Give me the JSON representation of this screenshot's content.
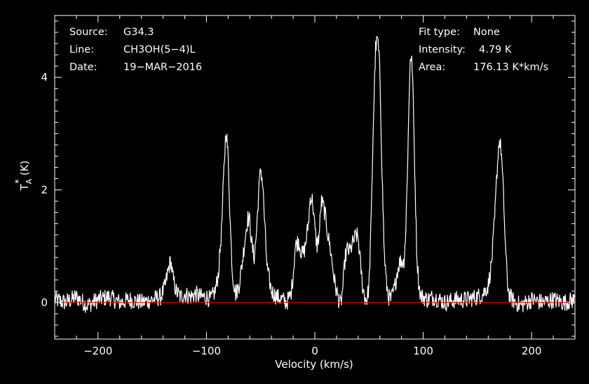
{
  "chart_data": {
    "type": "line",
    "xlabel": "Velocity (km/s)",
    "ylabel_main": "T",
    "ylabel_sub": "A",
    "ylabel_sup": "*",
    "ylabel_unit": "(K)",
    "xlim": [
      -240,
      240
    ],
    "ylim": [
      -0.65,
      5.1
    ],
    "xticks": [
      -200,
      -100,
      0,
      100,
      200
    ],
    "xtick_labels": [
      "−200",
      "−100",
      "0",
      "100",
      "200"
    ],
    "yticks": [
      0,
      2,
      4
    ],
    "ytick_labels": [
      "0",
      "2",
      "4"
    ],
    "baseline": 0,
    "colors": {
      "background": "#000000",
      "spectrum": "#ffffff",
      "baseline": "#cc1111",
      "axes": "#ffffff"
    },
    "info_left": [
      {
        "key": "Source:",
        "value": "G34.3"
      },
      {
        "key": "Line:",
        "value": "CH3OH(5−4)L"
      },
      {
        "key": "Date:",
        "value": "19−MAR−2016"
      }
    ],
    "info_right": [
      {
        "key": "Fit type:",
        "value": "None"
      },
      {
        "key": "Intensity:",
        "value": "4.79 K"
      },
      {
        "key": "Area:",
        "value": "176.13 K*km/s"
      }
    ],
    "series": [
      {
        "x": [
          -240,
          -230,
          -220,
          -210,
          -200,
          -190,
          -180,
          -170,
          -160,
          -150,
          -142,
          -138,
          -135,
          -133,
          -131,
          -128,
          -124,
          -120,
          -115,
          -110,
          -105,
          -100,
          -96,
          -92,
          -89,
          -86,
          -84,
          -82,
          -80,
          -78,
          -76,
          -73,
          -70,
          -67,
          -64,
          -62,
          -60,
          -58,
          -56,
          -54,
          -52,
          -50,
          -48,
          -46,
          -44,
          -40,
          -35,
          -30,
          -26,
          -22,
          -20,
          -18,
          -15,
          -12,
          -10,
          -8,
          -6,
          -4,
          -2,
          0,
          2,
          4,
          6,
          8,
          10,
          12,
          14,
          16,
          18,
          20,
          22,
          24,
          26,
          28,
          30,
          32,
          34,
          36,
          38,
          40,
          42,
          44,
          46,
          48,
          50,
          52,
          54,
          56,
          58,
          60,
          62,
          64,
          66,
          68,
          70,
          72,
          74,
          76,
          78,
          80,
          82,
          84,
          86,
          88,
          90,
          92,
          94,
          96,
          98,
          100,
          104,
          110,
          120,
          130,
          140,
          150,
          155,
          160,
          163,
          166,
          168,
          170,
          172,
          174,
          176,
          178,
          180,
          185,
          190,
          200,
          210,
          220,
          230,
          240
        ],
        "y": [
          0.05,
          0.0,
          0.1,
          -0.05,
          0.05,
          0.1,
          0.0,
          0.05,
          0.0,
          0.05,
          0.1,
          0.3,
          0.6,
          0.75,
          0.45,
          0.2,
          0.1,
          0.15,
          0.1,
          0.15,
          0.1,
          0.1,
          0.05,
          0.2,
          0.5,
          1.3,
          2.3,
          3.1,
          2.6,
          1.4,
          0.5,
          0.15,
          0.3,
          0.7,
          1.2,
          1.5,
          1.45,
          1.0,
          0.8,
          1.2,
          1.9,
          2.4,
          2.1,
          1.3,
          0.6,
          0.2,
          0.1,
          0.05,
          0.0,
          0.15,
          0.5,
          1.0,
          1.1,
          0.85,
          0.9,
          1.1,
          1.4,
          1.9,
          1.8,
          1.3,
          1.0,
          1.2,
          1.8,
          1.7,
          1.5,
          1.2,
          1.0,
          0.7,
          0.4,
          0.2,
          0.05,
          -0.05,
          0.3,
          0.8,
          0.95,
          0.9,
          1.0,
          1.1,
          1.2,
          1.15,
          0.7,
          0.3,
          0.1,
          0.05,
          0.3,
          1.5,
          3.2,
          4.5,
          4.7,
          4.1,
          2.3,
          0.9,
          0.35,
          0.1,
          0.05,
          0.15,
          0.3,
          0.55,
          0.7,
          0.75,
          0.7,
          1.3,
          2.8,
          4.4,
          4.2,
          2.5,
          0.9,
          0.3,
          0.1,
          0.1,
          0.05,
          0.1,
          0.0,
          0.05,
          0.05,
          0.1,
          0.15,
          0.3,
          0.7,
          1.5,
          2.3,
          2.9,
          2.7,
          1.9,
          0.9,
          0.3,
          0.1,
          0.0,
          -0.05,
          0.05,
          0.0,
          0.05,
          0.0,
          0.05
        ]
      }
    ]
  }
}
